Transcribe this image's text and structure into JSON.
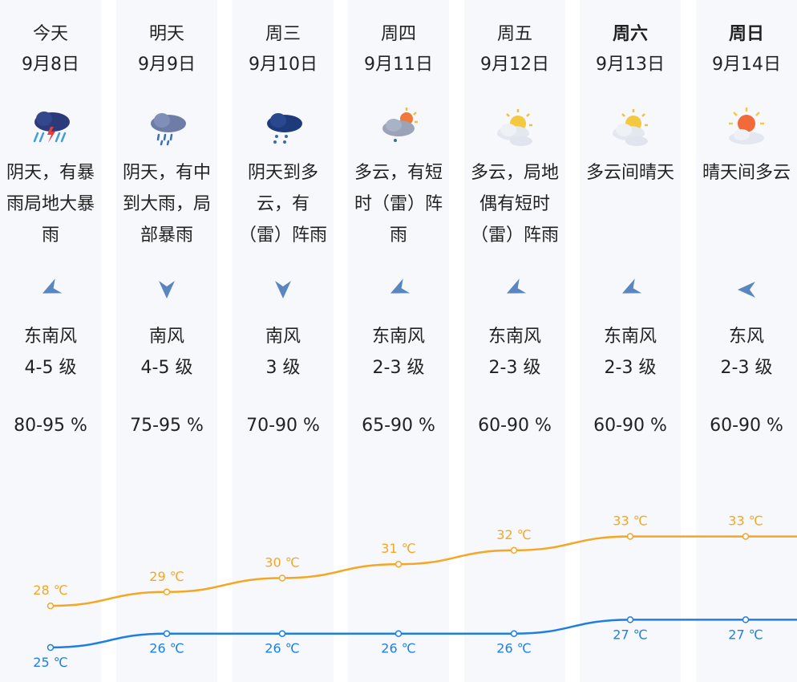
{
  "forecast": [
    {
      "day": "今天",
      "date": "9月8日",
      "bold": false,
      "icon": "thunderstorm-icon",
      "desc": "阴天，有暴雨局地大暴雨",
      "wind_dir": "东南风",
      "wind_level": "4-5 级",
      "humidity": "80-95 %"
    },
    {
      "day": "明天",
      "date": "9月9日",
      "bold": false,
      "icon": "heavy-rain-icon",
      "desc": "阴天，有中到大雨，局部暴雨",
      "wind_dir": "南风",
      "wind_level": "4-5 级",
      "humidity": "75-95 %"
    },
    {
      "day": "周三",
      "date": "9月10日",
      "bold": false,
      "icon": "light-rain-icon",
      "desc": "阴天到多云，有（雷）阵雨",
      "wind_dir": "南风",
      "wind_level": "3 级",
      "humidity": "70-90 %"
    },
    {
      "day": "周四",
      "date": "9月11日",
      "bold": false,
      "icon": "sun-cloud-rain-icon",
      "desc": "多云，有短时（雷）阵雨",
      "wind_dir": "东南风",
      "wind_level": "2-3 级",
      "humidity": "65-90 %"
    },
    {
      "day": "周五",
      "date": "9月12日",
      "bold": false,
      "icon": "partly-cloudy-icon",
      "desc": "多云，局地偶有短时（雷）阵雨",
      "wind_dir": "东南风",
      "wind_level": "2-3 级",
      "humidity": "60-90 %"
    },
    {
      "day": "周六",
      "date": "9月13日",
      "bold": true,
      "icon": "partly-cloudy-icon",
      "desc": "多云间晴天",
      "wind_dir": "东南风",
      "wind_level": "2-3 级",
      "humidity": "60-90 %"
    },
    {
      "day": "周日",
      "date": "9月14日",
      "bold": true,
      "icon": "sunny-cloud-icon",
      "desc": "晴天间多云",
      "wind_dir": "东风",
      "wind_level": "2-3 级",
      "humidity": "60-90 %"
    }
  ],
  "colors": {
    "high": "#f5a623",
    "low": "#1e7fe0",
    "column_bg": "#f6f8fc",
    "arrow": "#5a86c0"
  },
  "chart_data": {
    "type": "line",
    "categories": [
      "9月8日",
      "9月9日",
      "9月10日",
      "9月11日",
      "9月12日",
      "9月13日",
      "9月14日"
    ],
    "series": [
      {
        "values": [
          28,
          29,
          30,
          31,
          32,
          33,
          33
        ],
        "labels": [
          "28 ℃",
          "29 ℃",
          "30 ℃",
          "31 ℃",
          "32 ℃",
          "33 ℃",
          "33 ℃"
        ]
      },
      {
        "values": [
          25,
          26,
          26,
          26,
          26,
          27,
          27
        ],
        "labels": [
          "25 ℃",
          "26 ℃",
          "26 ℃",
          "26 ℃",
          "26 ℃",
          "27 ℃",
          "27 ℃"
        ]
      }
    ]
  }
}
